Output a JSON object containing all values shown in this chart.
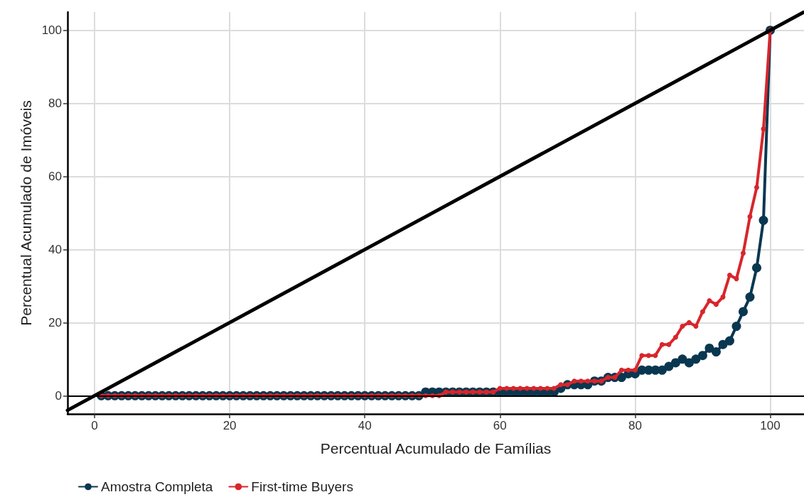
{
  "chart_data": {
    "type": "line",
    "xlabel": "Percentual Acumulado de Famílias",
    "ylabel": "Percentual Acumulado de Imóveis",
    "x": [
      1,
      2,
      3,
      4,
      5,
      6,
      7,
      8,
      9,
      10,
      11,
      12,
      13,
      14,
      15,
      16,
      17,
      18,
      19,
      20,
      21,
      22,
      23,
      24,
      25,
      26,
      27,
      28,
      29,
      30,
      31,
      32,
      33,
      34,
      35,
      36,
      37,
      38,
      39,
      40,
      41,
      42,
      43,
      44,
      45,
      46,
      47,
      48,
      49,
      50,
      51,
      52,
      53,
      54,
      55,
      56,
      57,
      58,
      59,
      60,
      61,
      62,
      63,
      64,
      65,
      66,
      67,
      68,
      69,
      70,
      71,
      72,
      73,
      74,
      75,
      76,
      77,
      78,
      79,
      80,
      81,
      82,
      83,
      84,
      85,
      86,
      87,
      88,
      89,
      90,
      91,
      92,
      93,
      94,
      95,
      96,
      97,
      98,
      99,
      100
    ],
    "series": [
      {
        "name": "Amostra Completa",
        "color": "#0a3750",
        "values": [
          0,
          0,
          0,
          0,
          0,
          0,
          0,
          0,
          0,
          0,
          0,
          0,
          0,
          0,
          0,
          0,
          0,
          0,
          0,
          0,
          0,
          0,
          0,
          0,
          0,
          0,
          0,
          0,
          0,
          0,
          0,
          0,
          0,
          0,
          0,
          0,
          0,
          0,
          0,
          0,
          0,
          0,
          0,
          0,
          0,
          0,
          0,
          0,
          1,
          1,
          1,
          1,
          1,
          1,
          1,
          1,
          1,
          1,
          1,
          1,
          1,
          1,
          1,
          1,
          1,
          1,
          1,
          1,
          2,
          3,
          3,
          3,
          3,
          4,
          4,
          5,
          5,
          5,
          6,
          6,
          7,
          7,
          7,
          7,
          8,
          9,
          10,
          9,
          10,
          11,
          13,
          12,
          14,
          15,
          19,
          23,
          27,
          35,
          48,
          100
        ]
      },
      {
        "name": "First-time Buyers",
        "color": "#d7262b",
        "values": [
          0,
          0,
          0,
          0,
          0,
          0,
          0,
          0,
          0,
          0,
          0,
          0,
          0,
          0,
          0,
          0,
          0,
          0,
          0,
          0,
          0,
          0,
          0,
          0,
          0,
          0,
          0,
          0,
          0,
          0,
          0,
          0,
          0,
          0,
          0,
          0,
          0,
          0,
          0,
          0,
          0,
          0,
          0,
          0,
          0,
          0,
          0,
          0,
          0,
          0,
          0,
          1,
          1,
          1,
          1,
          1,
          1,
          1,
          1,
          2,
          2,
          2,
          2,
          2,
          2,
          2,
          2,
          2,
          3,
          3,
          4,
          4,
          4,
          4,
          4,
          5,
          5,
          7,
          7,
          7,
          11,
          11,
          11,
          14,
          14,
          16,
          19,
          20,
          19,
          23,
          26,
          25,
          27,
          33,
          32,
          39,
          49,
          57,
          73,
          100
        ]
      },
      {
        "type": "line",
        "color": "#000000",
        "marker": "none",
        "x": [
          -4,
          105
        ],
        "values": [
          -4,
          105
        ]
      }
    ],
    "ref_lines": [
      {
        "axis": "y",
        "value": 0,
        "color": "#000000"
      }
    ],
    "xlim": [
      -4,
      105
    ],
    "ylim": [
      -5,
      105
    ],
    "xticks": [
      0,
      20,
      40,
      60,
      80,
      100
    ],
    "yticks": [
      0,
      20,
      40,
      60,
      80,
      100
    ],
    "grid": true,
    "legend": "bottom left",
    "marker": "circle",
    "line_style": "solid"
  }
}
